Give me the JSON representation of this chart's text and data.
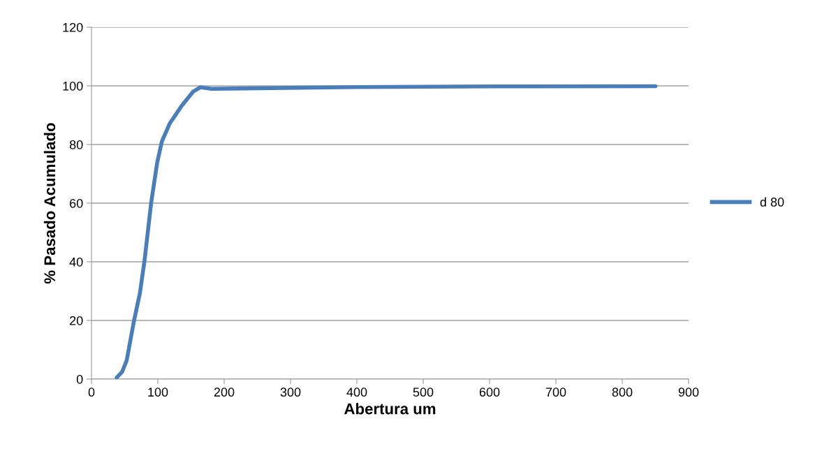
{
  "chart_data": {
    "type": "line",
    "xlabel": "Abertura um",
    "ylabel": "% Pasado Acumulado",
    "x": [
      38,
      46,
      53,
      64,
      73,
      80,
      90,
      99,
      106,
      118,
      136,
      153,
      164,
      181,
      250,
      400,
      600,
      850
    ],
    "series": [
      {
        "name": "d 80",
        "color": "#4a7ebb",
        "values": [
          0.5,
          2.4,
          6.3,
          19.8,
          29.3,
          40.5,
          60.2,
          73.8,
          81,
          87.2,
          93.2,
          98,
          99.5,
          99,
          99.2,
          99.6,
          99.8,
          99.9
        ]
      }
    ],
    "xlim": [
      0,
      900
    ],
    "xticks": [
      0,
      100,
      200,
      300,
      400,
      500,
      600,
      700,
      800,
      900
    ],
    "ylim": [
      0,
      120
    ],
    "yticks": [
      0,
      20,
      40,
      60,
      80,
      100,
      120
    ],
    "grid": "y",
    "legend": "right",
    "marker": "none",
    "line_style": "solid"
  }
}
